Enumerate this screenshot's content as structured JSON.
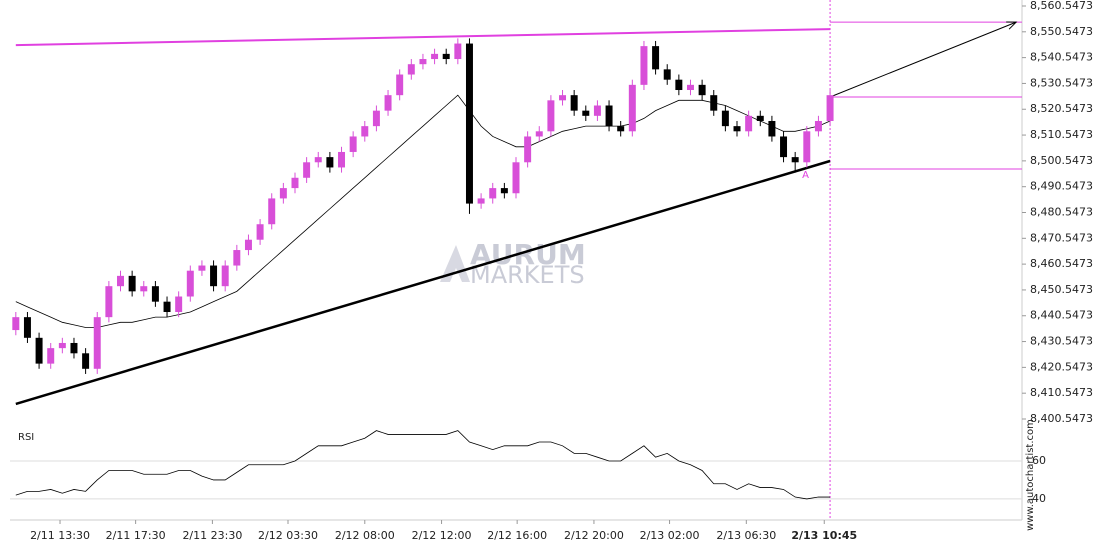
{
  "chart_data": {
    "type": "candlestick",
    "up_color": "#d84fd8",
    "down_color": "#000000",
    "ma_color": "#000000",
    "pattern_color": "#e040e0",
    "support_color": "#000000",
    "x": [
      0,
      1,
      2,
      3,
      4,
      5,
      6,
      7,
      8,
      9,
      10,
      11,
      12,
      13,
      14,
      15,
      16,
      17,
      18,
      19,
      20,
      21,
      22,
      23,
      24,
      25,
      26,
      27,
      28,
      29,
      30,
      31,
      32,
      33,
      34,
      35,
      36,
      37,
      38,
      39,
      40,
      41,
      42,
      43,
      44,
      45,
      46,
      47,
      48,
      49,
      50,
      51,
      52,
      53,
      54,
      55,
      56,
      57,
      58,
      59,
      60,
      61,
      62,
      63,
      64,
      65,
      66,
      67,
      68,
      69,
      70
    ],
    "open": [
      8435,
      8440,
      8432,
      8422,
      8428,
      8430,
      8426,
      8420,
      8440,
      8452,
      8456,
      8450,
      8452,
      8446,
      8442,
      8448,
      8458,
      8460,
      8452,
      8460,
      8466,
      8470,
      8476,
      8486,
      8490,
      8494,
      8500,
      8502,
      8498,
      8504,
      8510,
      8514,
      8520,
      8526,
      8534,
      8538,
      8540,
      8542,
      8540,
      8546,
      8484,
      8486,
      8490,
      8488,
      8500,
      8510,
      8512,
      8524,
      8526,
      8520,
      8518,
      8522,
      8514,
      8512,
      8530,
      8545,
      8536,
      8532,
      8528,
      8530,
      8526,
      8520,
      8514,
      8512,
      8518,
      8516,
      8510,
      8502,
      8500,
      8512,
      8516
    ],
    "high": [
      8442,
      8442,
      8434,
      8430,
      8432,
      8432,
      8428,
      8442,
      8454,
      8458,
      8458,
      8454,
      8454,
      8448,
      8450,
      8460,
      8462,
      8462,
      8462,
      8468,
      8472,
      8478,
      8488,
      8492,
      8496,
      8502,
      8504,
      8504,
      8506,
      8512,
      8516,
      8522,
      8528,
      8536,
      8540,
      8542,
      8544,
      8544,
      8548,
      8548,
      8488,
      8492,
      8492,
      8502,
      8512,
      8514,
      8526,
      8528,
      8528,
      8522,
      8524,
      8524,
      8516,
      8532,
      8547,
      8547,
      8538,
      8534,
      8532,
      8532,
      8528,
      8522,
      8516,
      8520,
      8520,
      8518,
      8512,
      8504,
      8514,
      8518,
      8528
    ],
    "low": [
      8433,
      8430,
      8420,
      8420,
      8426,
      8424,
      8418,
      8418,
      8438,
      8450,
      8448,
      8448,
      8444,
      8440,
      8440,
      8446,
      8456,
      8450,
      8450,
      8458,
      8464,
      8468,
      8474,
      8484,
      8488,
      8492,
      8498,
      8496,
      8496,
      8502,
      8508,
      8512,
      8518,
      8524,
      8532,
      8536,
      8538,
      8538,
      8538,
      8480,
      8482,
      8484,
      8486,
      8486,
      8498,
      8508,
      8510,
      8522,
      8518,
      8516,
      8516,
      8512,
      8510,
      8510,
      8528,
      8534,
      8530,
      8526,
      8526,
      8524,
      8518,
      8512,
      8510,
      8510,
      8514,
      8508,
      8500,
      8496,
      8498,
      8510,
      8514
    ],
    "close": [
      8440,
      8432,
      8422,
      8428,
      8430,
      8426,
      8420,
      8440,
      8452,
      8456,
      8450,
      8452,
      8446,
      8442,
      8448,
      8458,
      8460,
      8452,
      8460,
      8466,
      8470,
      8476,
      8486,
      8490,
      8494,
      8500,
      8502,
      8498,
      8504,
      8510,
      8514,
      8520,
      8526,
      8534,
      8538,
      8540,
      8542,
      8540,
      8546,
      8484,
      8486,
      8490,
      8488,
      8500,
      8510,
      8512,
      8524,
      8526,
      8520,
      8518,
      8522,
      8514,
      8512,
      8530,
      8545,
      8536,
      8532,
      8528,
      8530,
      8526,
      8520,
      8514,
      8512,
      8518,
      8516,
      8510,
      8502,
      8500,
      8512,
      8516,
      8526
    ],
    "ma": [
      8446,
      8444,
      8442,
      8440,
      8438,
      8437,
      8436,
      8436,
      8437,
      8438,
      8438,
      8439,
      8440,
      8440,
      8441,
      8442,
      8444,
      8446,
      8448,
      8450,
      8454,
      8458,
      8462,
      8466,
      8470,
      8474,
      8478,
      8482,
      8486,
      8490,
      8494,
      8498,
      8502,
      8506,
      8510,
      8514,
      8518,
      8522,
      8526,
      8520,
      8514,
      8510,
      8508,
      8506,
      8506,
      8508,
      8510,
      8512,
      8513,
      8514,
      8514,
      8514,
      8514,
      8515,
      8517,
      8520,
      8522,
      8524,
      8524,
      8524,
      8523,
      8522,
      8520,
      8518,
      8516,
      8514,
      8512,
      8512,
      8513,
      8514,
      8516
    ],
    "xlim": [
      -0.5,
      86.5
    ],
    "xticks": [
      {
        "value": 3.8,
        "label": "2/11 13:30"
      },
      {
        "value": 10.3,
        "label": "2/11 17:30"
      },
      {
        "value": 16.9,
        "label": "2/11 23:30"
      },
      {
        "value": 23.4,
        "label": "2/12 03:30"
      },
      {
        "value": 30.0,
        "label": "2/12 08:00"
      },
      {
        "value": 36.6,
        "label": "2/12 12:00"
      },
      {
        "value": 43.1,
        "label": "2/12 16:00"
      },
      {
        "value": 49.7,
        "label": "2/12 20:00"
      },
      {
        "value": 56.2,
        "label": "2/13 02:00"
      },
      {
        "value": 62.8,
        "label": "2/13 06:30"
      },
      {
        "value": 69.5,
        "label": "2/13 10:45"
      }
    ],
    "ylim": [
      8398.61,
      8562.87
    ],
    "yticks": [
      {
        "value": 8400.5473,
        "label": "8,400.5473"
      },
      {
        "value": 8410.5473,
        "label": "8,410.5473"
      },
      {
        "value": 8420.5473,
        "label": "8,420.5473"
      },
      {
        "value": 8430.5473,
        "label": "8,430.5473"
      },
      {
        "value": 8440.5473,
        "label": "8,440.5473"
      },
      {
        "value": 8450.5473,
        "label": "8,450.5473"
      },
      {
        "value": 8460.5473,
        "label": "8,460.5473"
      },
      {
        "value": 8470.5473,
        "label": "8,470.5473"
      },
      {
        "value": 8480.5473,
        "label": "8,480.5473"
      },
      {
        "value": 8490.5473,
        "label": "8,490.5473"
      },
      {
        "value": 8500.5473,
        "label": "8,500.5473"
      },
      {
        "value": 8510.5473,
        "label": "8,510.5473"
      },
      {
        "value": 8520.5473,
        "label": "8,520.5473"
      },
      {
        "value": 8530.5473,
        "label": "8,530.5473"
      },
      {
        "value": 8540.5473,
        "label": "8,540.5473"
      },
      {
        "value": 8550.5473,
        "label": "8,550.5473"
      },
      {
        "value": 8560.5473,
        "label": "8,560.5473"
      }
    ],
    "resistance": {
      "x": [
        0,
        70
      ],
      "values": [
        8545.4,
        8551.6
      ]
    },
    "support": {
      "x": [
        0,
        70
      ],
      "values": [
        8406.4,
        8500.5
      ]
    },
    "levels": [
      8554.3,
      8525.3,
      8497.4
    ],
    "forecast": {
      "x": [
        70,
        86
      ],
      "values": [
        8525.3,
        8554.3
      ]
    },
    "pattern_label": "A",
    "watermark": [
      "AURUM",
      "MARKETS"
    ],
    "source": "www.autochartist.com",
    "rsi": {
      "name": "RSI",
      "color": "#000000",
      "values": [
        42,
        44,
        44,
        45,
        43,
        45,
        44,
        50,
        55,
        55,
        55,
        53,
        53,
        53,
        55,
        55,
        52,
        50,
        50,
        54,
        58,
        58,
        58,
        58,
        60,
        64,
        68,
        68,
        68,
        70,
        72,
        76,
        74,
        74,
        74,
        74,
        74,
        74,
        76,
        70,
        68,
        66,
        68,
        68,
        68,
        70,
        70,
        68,
        64,
        64,
        62,
        60,
        60,
        64,
        68,
        62,
        64,
        60,
        58,
        55,
        48,
        48,
        45,
        48,
        46,
        46,
        45,
        41,
        40,
        41,
        41
      ],
      "ylim": [
        28.9,
        81.6
      ],
      "yticks": [
        40,
        60
      ]
    }
  }
}
